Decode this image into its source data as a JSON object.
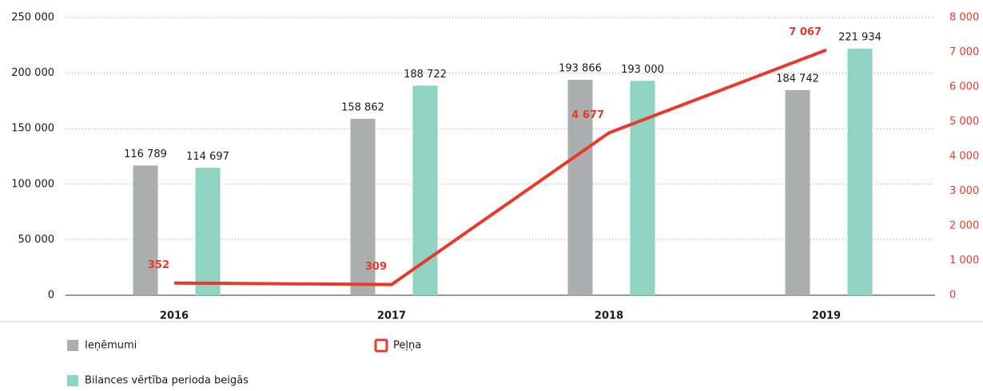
{
  "chart_data": {
    "type": "bar",
    "categories": [
      "2016",
      "2017",
      "2018",
      "2019"
    ],
    "series": [
      {
        "name": "Ieņēmumi",
        "color": "#aaaeae",
        "values": [
          116789,
          158862,
          193866,
          184742
        ],
        "value_labels": [
          "116 789",
          "158 862",
          "193 866",
          "184 742"
        ]
      },
      {
        "name": "Bilances vērtība perioda beigās",
        "color": "#8fd3c3",
        "values": [
          114697,
          188722,
          193000,
          221934
        ],
        "value_labels": [
          "114 697",
          "188 722",
          "193 000",
          "221 934"
        ]
      },
      {
        "name": "Peļņa",
        "color": "#e8392b",
        "type": "line",
        "axis": "y2",
        "values": [
          352,
          309,
          4677,
          7067
        ],
        "value_labels": [
          "352",
          "309",
          "4 677",
          "7 067"
        ]
      }
    ],
    "ylim": [
      0,
      250000
    ],
    "yticks": [
      0,
      {
        "value": 50000,
        "label": "50 000"
      },
      {
        "value": 100000,
        "label": "100 000"
      },
      {
        "value": 150000,
        "label": "150 000"
      },
      {
        "value": 200000,
        "label": "200 000"
      },
      {
        "value": 250000,
        "label": "250 000"
      }
    ],
    "y2lim": [
      0,
      8000
    ],
    "y2ticks": [
      0,
      {
        "value": 1000,
        "label": "1 000"
      },
      {
        "value": 2000,
        "label": "2 000"
      },
      {
        "value": 3000,
        "label": "3 000"
      },
      {
        "value": 4000,
        "label": "4 000"
      },
      {
        "value": 5000,
        "label": "5 000"
      },
      {
        "value": 6000,
        "label": "6 000"
      },
      {
        "value": 7000,
        "label": "7 000"
      },
      {
        "value": 8000,
        "label": "8 000"
      }
    ],
    "grid": true
  }
}
